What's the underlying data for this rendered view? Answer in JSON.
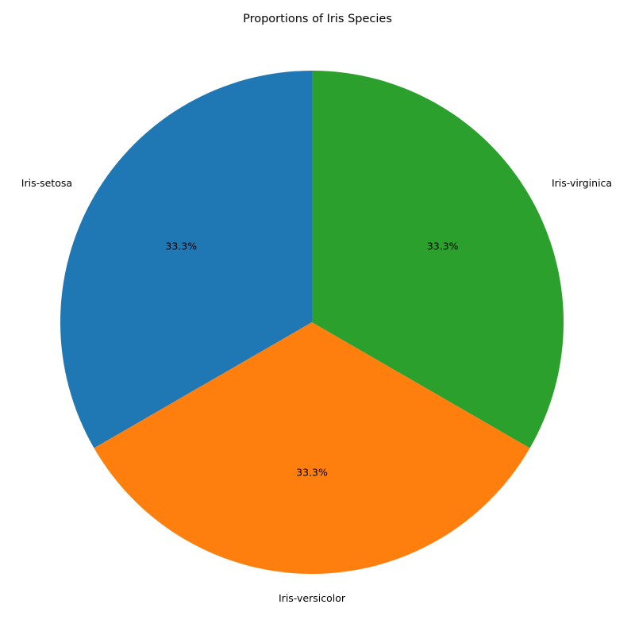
{
  "chart_data": {
    "type": "pie",
    "title": "Proportions of Iris Species",
    "start_angle_deg": 90,
    "direction": "counterclockwise",
    "slices": [
      {
        "label": "Iris-setosa",
        "value": 33.3,
        "pct_label": "33.3%",
        "color": "#1f77b4"
      },
      {
        "label": "Iris-versicolor",
        "value": 33.3,
        "pct_label": "33.3%",
        "color": "#ff7f0e"
      },
      {
        "label": "Iris-virginica",
        "value": 33.3,
        "pct_label": "33.3%",
        "color": "#2ca02c"
      }
    ],
    "legend": "none",
    "grid": false
  }
}
